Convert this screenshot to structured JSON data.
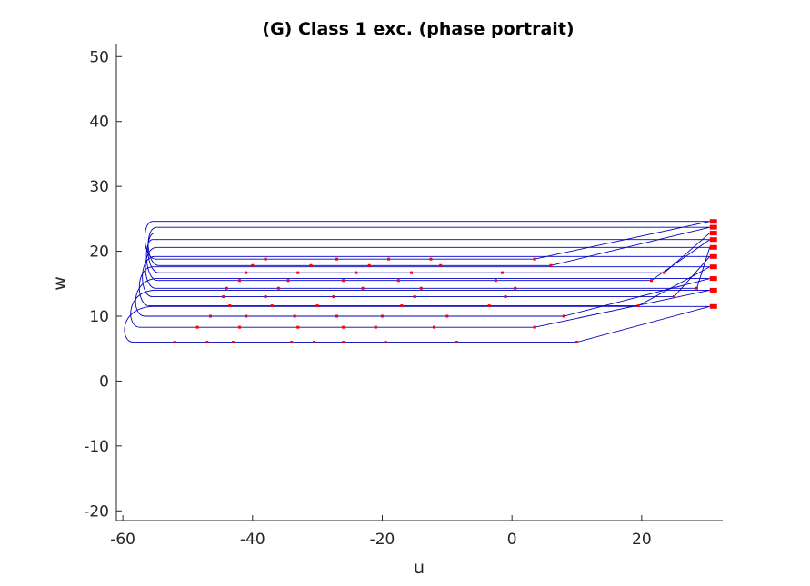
{
  "chart_data": {
    "type": "line",
    "title": "(G) Class 1 exc. (phase portrait)",
    "xlabel": "u",
    "ylabel": "w",
    "xlim": [
      -61,
      32.5
    ],
    "ylim": [
      -21.5,
      52
    ],
    "xticks": [
      -60,
      -40,
      -20,
      0,
      20
    ],
    "yticks": [
      -20,
      -10,
      0,
      10,
      20,
      30,
      40,
      50
    ],
    "grid": false,
    "legend": "none",
    "colors": {
      "trajectory": "#0000c0",
      "spike_marker": "#ff0000",
      "axis": "#262626"
    },
    "series": [
      {
        "w_reset": 6.0,
        "w_peak": 11.5,
        "u_left": -59.0,
        "u_break": 10.0,
        "spikes": [
          -52.0,
          -47.0,
          -43.0,
          -34.0,
          -30.5,
          -26.0,
          -19.5,
          -8.5,
          10.0
        ]
      },
      {
        "w_reset": 8.3,
        "w_peak": 14.0,
        "u_left": -58.0,
        "u_break": 3.5,
        "spikes": [
          -48.5,
          -42.0,
          -33.0,
          -26.0,
          -21.0,
          -12.0,
          3.5
        ]
      },
      {
        "w_reset": 10.0,
        "w_peak": 15.8,
        "u_left": -57.2,
        "u_break": 8.0,
        "spikes": [
          -46.5,
          -41.0,
          -33.5,
          -27.0,
          -20.0,
          -10.0,
          8.0
        ]
      },
      {
        "w_reset": 11.6,
        "w_peak": 17.6,
        "u_left": -56.5,
        "u_break": 19.5,
        "spikes": [
          -43.5,
          -37.0,
          -30.0,
          -17.0,
          -3.5,
          19.5
        ]
      },
      {
        "w_reset": 13.0,
        "w_peak": 19.2,
        "u_left": -56.0,
        "u_break": 25.0,
        "spikes": [
          -44.5,
          -38.0,
          -27.5,
          -15.0,
          -1.0,
          25.0
        ]
      },
      {
        "w_reset": 14.3,
        "w_peak": 20.6,
        "u_left": -55.5,
        "u_break": 28.5,
        "spikes": [
          -44.0,
          -36.0,
          -23.0,
          -14.0,
          0.5,
          28.5
        ]
      },
      {
        "w_reset": 15.5,
        "w_peak": 21.8,
        "u_left": -55.2,
        "u_break": 21.5,
        "spikes": [
          -42.0,
          -34.5,
          -26.0,
          -17.5,
          -2.5,
          21.5
        ]
      },
      {
        "w_reset": 16.7,
        "w_peak": 22.8,
        "u_left": -55.0,
        "u_break": 23.5,
        "spikes": [
          -41.0,
          -33.0,
          -24.0,
          -15.5,
          -1.5,
          23.5
        ]
      },
      {
        "w_reset": 17.8,
        "w_peak": 23.7,
        "u_left": -55.0,
        "u_break": 6.0,
        "spikes": [
          -40.0,
          -31.0,
          -22.0,
          -11.0,
          6.0
        ]
      },
      {
        "w_reset": 18.8,
        "w_peak": 24.6,
        "u_left": -55.5,
        "u_break": 3.5,
        "spikes": [
          -38.0,
          -27.0,
          -19.0,
          -12.5,
          3.5
        ]
      }
    ]
  }
}
